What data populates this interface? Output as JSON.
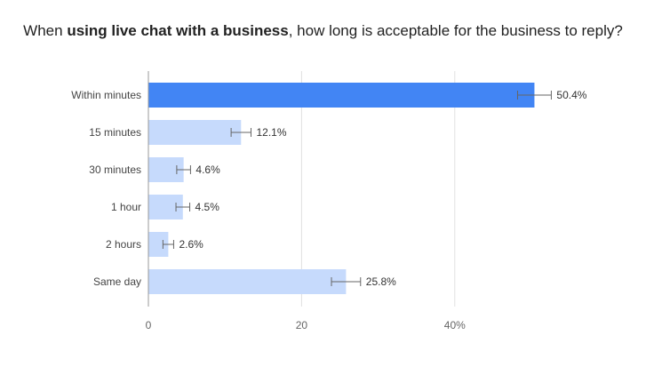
{
  "title": {
    "prefix": "When ",
    "bold": "using live chat with a business",
    "suffix": ", how long is acceptable for the business to reply?"
  },
  "chart_data": {
    "type": "bar",
    "orientation": "horizontal",
    "categories": [
      "Within minutes",
      "15 minutes",
      "30 minutes",
      "1 hour",
      "2 hours",
      "Same day"
    ],
    "values": [
      50.4,
      12.1,
      4.6,
      4.5,
      2.6,
      25.8
    ],
    "value_labels": [
      "50.4%",
      "12.1%",
      "4.6%",
      "4.5%",
      "2.6%",
      "25.8%"
    ],
    "error_margin": [
      2.2,
      1.3,
      0.9,
      0.9,
      0.7,
      1.9
    ],
    "highlight_index": 0,
    "x_ticks": [
      0,
      20,
      40
    ],
    "x_tick_labels": [
      "0",
      "20",
      "40%"
    ],
    "xlim": [
      0,
      60
    ],
    "grid": true,
    "colors": {
      "highlight": "#4285f4",
      "default": "#c6dafc",
      "grid": "#e0e0e0",
      "axis": "#999999",
      "error_bar": "#666666",
      "text": "#444444"
    }
  }
}
